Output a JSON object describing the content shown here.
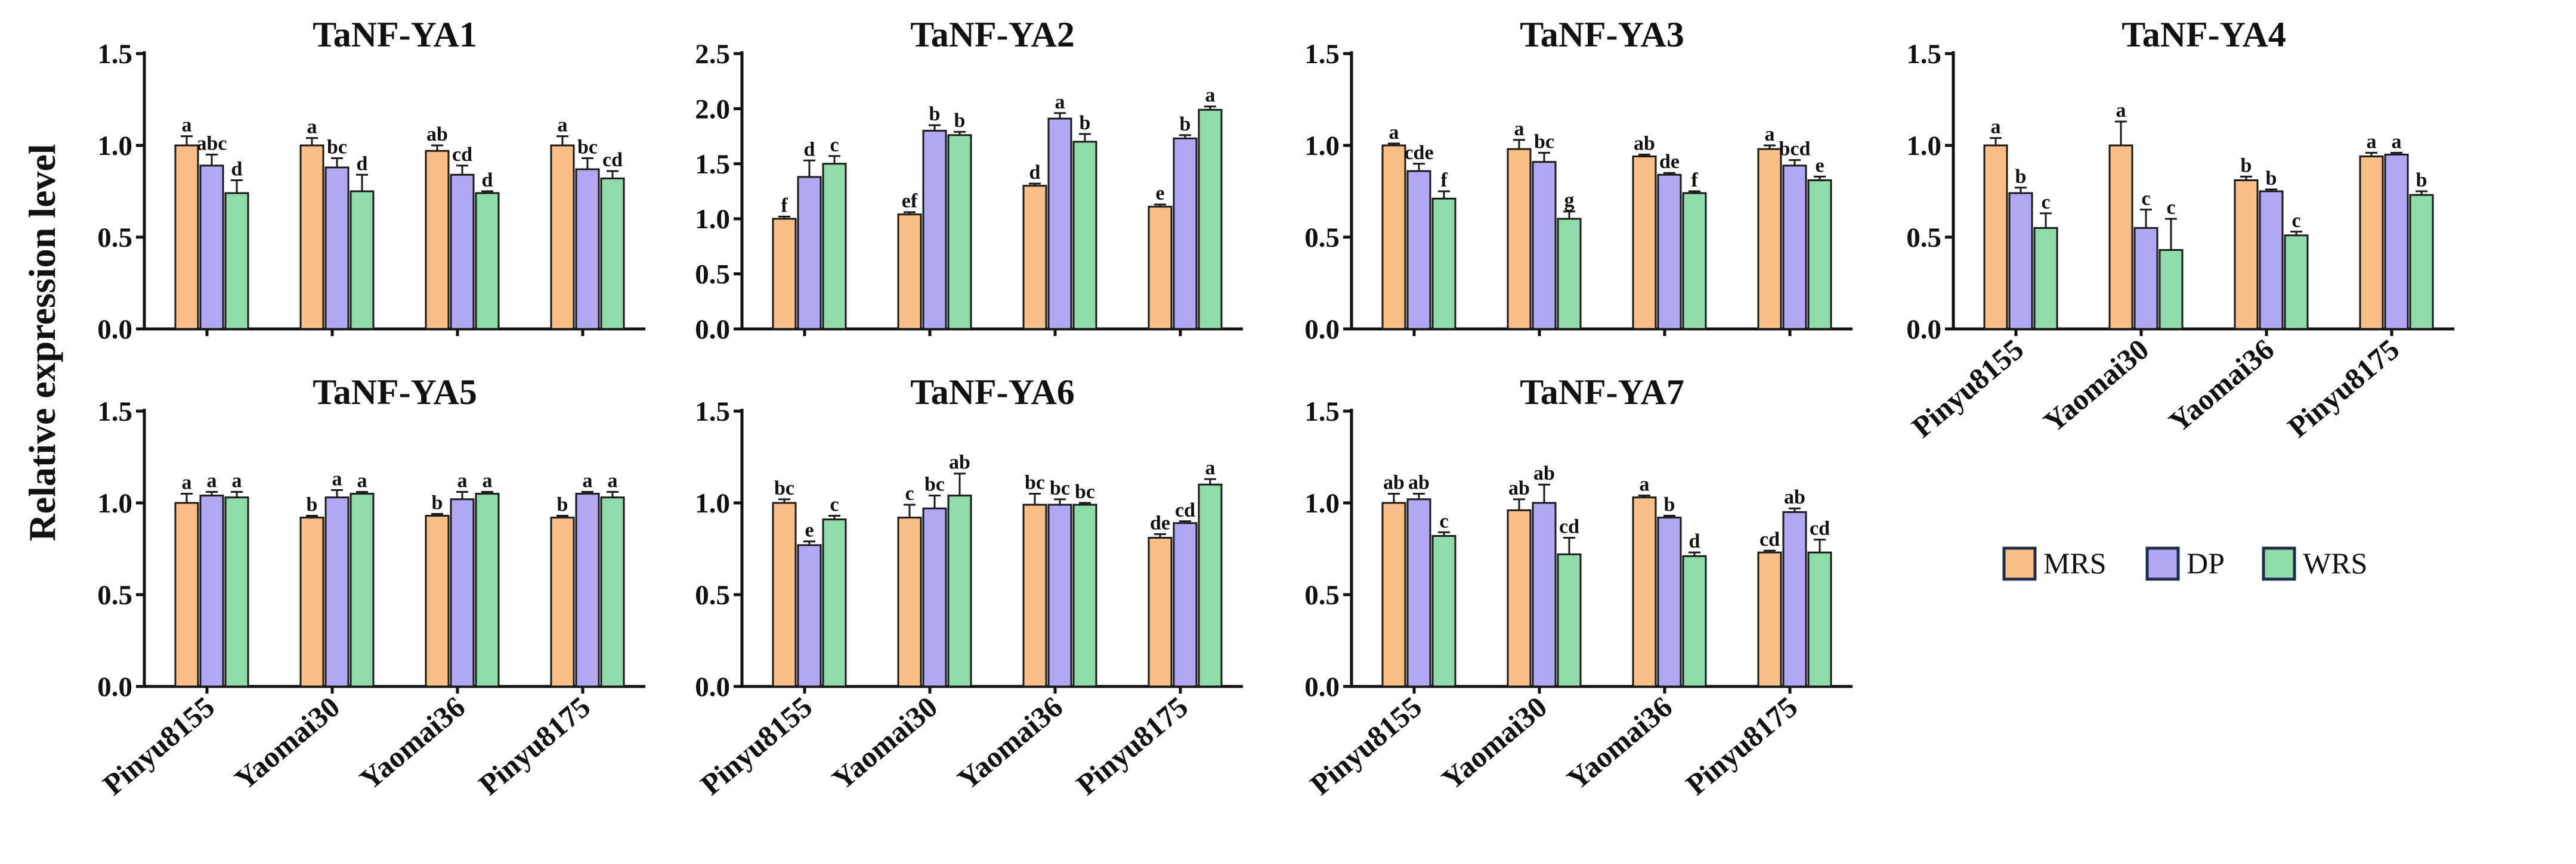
{
  "figure": {
    "ylabel": "Relative expression level",
    "legend": [
      {
        "name": "MRS",
        "color": "#f9bf86"
      },
      {
        "name": "DP",
        "color": "#b2a7f3"
      },
      {
        "name": "WRS",
        "color": "#8fdcaa"
      }
    ]
  },
  "chart_data": [
    {
      "type": "bar",
      "title": "TaNF-YA1",
      "categories": [
        "Pinyu8155",
        "Yaomai30",
        "Yaomai36",
        "Pinyu8175"
      ],
      "ylim": [
        0,
        1.5
      ],
      "yticks": [
        "0.0",
        "0.5",
        "1.0",
        "1.5"
      ],
      "show_x_labels": false,
      "series": [
        {
          "name": "MRS",
          "values": [
            1.0,
            1.0,
            0.97,
            1.0
          ],
          "errors": [
            0.05,
            0.04,
            0.03,
            0.05
          ],
          "letters": [
            "a",
            "a",
            "ab",
            "a"
          ]
        },
        {
          "name": "DP",
          "values": [
            0.89,
            0.88,
            0.84,
            0.87
          ],
          "errors": [
            0.06,
            0.05,
            0.05,
            0.06
          ],
          "letters": [
            "abc",
            "bc",
            "cd",
            "bc"
          ]
        },
        {
          "name": "WRS",
          "values": [
            0.74,
            0.75,
            0.74,
            0.82
          ],
          "errors": [
            0.07,
            0.09,
            0.01,
            0.04
          ],
          "letters": [
            "d",
            "d",
            "d",
            "cd"
          ]
        }
      ]
    },
    {
      "type": "bar",
      "title": "TaNF-YA2",
      "categories": [
        "Pinyu8155",
        "Yaomai30",
        "Yaomai36",
        "Pinyu8175"
      ],
      "ylim": [
        0,
        2.5
      ],
      "yticks": [
        "0.0",
        "0.5",
        "1.0",
        "1.5",
        "2.0",
        "2.5"
      ],
      "show_x_labels": false,
      "series": [
        {
          "name": "MRS",
          "values": [
            1.0,
            1.04,
            1.3,
            1.11
          ],
          "errors": [
            0.02,
            0.02,
            0.02,
            0.02
          ],
          "letters": [
            "f",
            "ef",
            "d",
            "e"
          ]
        },
        {
          "name": "DP",
          "values": [
            1.38,
            1.8,
            1.91,
            1.73
          ],
          "errors": [
            0.15,
            0.05,
            0.05,
            0.03
          ],
          "letters": [
            "d",
            "b",
            "a",
            "b"
          ]
        },
        {
          "name": "WRS",
          "values": [
            1.5,
            1.76,
            1.7,
            1.99
          ],
          "errors": [
            0.07,
            0.03,
            0.07,
            0.03
          ],
          "letters": [
            "c",
            "b",
            "b",
            "a"
          ]
        }
      ]
    },
    {
      "type": "bar",
      "title": "TaNF-YA3",
      "categories": [
        "Pinyu8155",
        "Yaomai30",
        "Yaomai36",
        "Pinyu8175"
      ],
      "ylim": [
        0,
        1.5
      ],
      "yticks": [
        "0.0",
        "0.5",
        "1.0",
        "1.5"
      ],
      "show_x_labels": false,
      "series": [
        {
          "name": "MRS",
          "values": [
            1.0,
            0.98,
            0.94,
            0.98
          ],
          "errors": [
            0.01,
            0.05,
            0.01,
            0.02
          ],
          "letters": [
            "a",
            "a",
            "ab",
            "a"
          ]
        },
        {
          "name": "DP",
          "values": [
            0.86,
            0.91,
            0.84,
            0.89
          ],
          "errors": [
            0.04,
            0.05,
            0.01,
            0.03
          ],
          "letters": [
            "cde",
            "bc",
            "de",
            "bcd"
          ]
        },
        {
          "name": "WRS",
          "values": [
            0.71,
            0.6,
            0.74,
            0.81
          ],
          "errors": [
            0.04,
            0.04,
            0.01,
            0.02
          ],
          "letters": [
            "f",
            "g",
            "f",
            "e"
          ]
        }
      ]
    },
    {
      "type": "bar",
      "title": "TaNF-YA4",
      "categories": [
        "Pinyu8155",
        "Yaomai30",
        "Yaomai36",
        "Pinyu8175"
      ],
      "ylim": [
        0,
        1.5
      ],
      "yticks": [
        "0.0",
        "0.5",
        "1.0",
        "1.5"
      ],
      "show_x_labels": true,
      "series": [
        {
          "name": "MRS",
          "values": [
            1.0,
            1.0,
            0.81,
            0.94
          ],
          "errors": [
            0.04,
            0.13,
            0.02,
            0.02
          ],
          "letters": [
            "a",
            "a",
            "b",
            "a"
          ]
        },
        {
          "name": "DP",
          "values": [
            0.74,
            0.55,
            0.75,
            0.95
          ],
          "errors": [
            0.03,
            0.1,
            0.01,
            0.01
          ],
          "letters": [
            "b",
            "c",
            "b",
            "a"
          ]
        },
        {
          "name": "WRS",
          "values": [
            0.55,
            0.43,
            0.51,
            0.73
          ],
          "errors": [
            0.08,
            0.17,
            0.02,
            0.02
          ],
          "letters": [
            "c",
            "c",
            "c",
            "b"
          ]
        }
      ]
    },
    {
      "type": "bar",
      "title": "TaNF-YA5",
      "categories": [
        "Pinyu8155",
        "Yaomai30",
        "Yaomai36",
        "Pinyu8175"
      ],
      "ylim": [
        0,
        1.5
      ],
      "yticks": [
        "0.0",
        "0.5",
        "1.0",
        "1.5"
      ],
      "show_x_labels": true,
      "series": [
        {
          "name": "MRS",
          "values": [
            1.0,
            0.92,
            0.93,
            0.92
          ],
          "errors": [
            0.05,
            0.01,
            0.01,
            0.01
          ],
          "letters": [
            "a",
            "b",
            "b",
            "b"
          ]
        },
        {
          "name": "DP",
          "values": [
            1.04,
            1.03,
            1.02,
            1.05
          ],
          "errors": [
            0.02,
            0.04,
            0.04,
            0.01
          ],
          "letters": [
            "a",
            "a",
            "a",
            "a"
          ]
        },
        {
          "name": "WRS",
          "values": [
            1.03,
            1.05,
            1.05,
            1.03
          ],
          "errors": [
            0.03,
            0.01,
            0.01,
            0.03
          ],
          "letters": [
            "a",
            "a",
            "a",
            "a"
          ]
        }
      ]
    },
    {
      "type": "bar",
      "title": "TaNF-YA6",
      "categories": [
        "Pinyu8155",
        "Yaomai30",
        "Yaomai36",
        "Pinyu8175"
      ],
      "ylim": [
        0,
        1.5
      ],
      "yticks": [
        "0.0",
        "0.5",
        "1.0",
        "1.5"
      ],
      "show_x_labels": true,
      "series": [
        {
          "name": "MRS",
          "values": [
            1.0,
            0.92,
            0.99,
            0.81
          ],
          "errors": [
            0.02,
            0.07,
            0.06,
            0.02
          ],
          "letters": [
            "bc",
            "c",
            "bc",
            "de"
          ]
        },
        {
          "name": "DP",
          "values": [
            0.77,
            0.97,
            0.99,
            0.89
          ],
          "errors": [
            0.02,
            0.07,
            0.03,
            0.01
          ],
          "letters": [
            "e",
            "bc",
            "bc",
            "cd"
          ]
        },
        {
          "name": "WRS",
          "values": [
            0.91,
            1.04,
            0.99,
            1.1
          ],
          "errors": [
            0.02,
            0.12,
            0.01,
            0.03
          ],
          "letters": [
            "c",
            "ab",
            "bc",
            "a"
          ]
        }
      ]
    },
    {
      "type": "bar",
      "title": "TaNF-YA7",
      "categories": [
        "Pinyu8155",
        "Yaomai30",
        "Yaomai36",
        "Pinyu8175"
      ],
      "ylim": [
        0,
        1.5
      ],
      "yticks": [
        "0.0",
        "0.5",
        "1.0",
        "1.5"
      ],
      "show_x_labels": true,
      "series": [
        {
          "name": "MRS",
          "values": [
            1.0,
            0.96,
            1.03,
            0.73
          ],
          "errors": [
            0.05,
            0.06,
            0.01,
            0.01
          ],
          "letters": [
            "ab",
            "ab",
            "a",
            "cd"
          ]
        },
        {
          "name": "DP",
          "values": [
            1.02,
            1.0,
            0.92,
            0.95
          ],
          "errors": [
            0.03,
            0.1,
            0.01,
            0.02
          ],
          "letters": [
            "ab",
            "ab",
            "b",
            "ab"
          ]
        },
        {
          "name": "WRS",
          "values": [
            0.82,
            0.72,
            0.71,
            0.73
          ],
          "errors": [
            0.02,
            0.09,
            0.02,
            0.07
          ],
          "letters": [
            "c",
            "cd",
            "d",
            "cd"
          ]
        }
      ]
    }
  ]
}
